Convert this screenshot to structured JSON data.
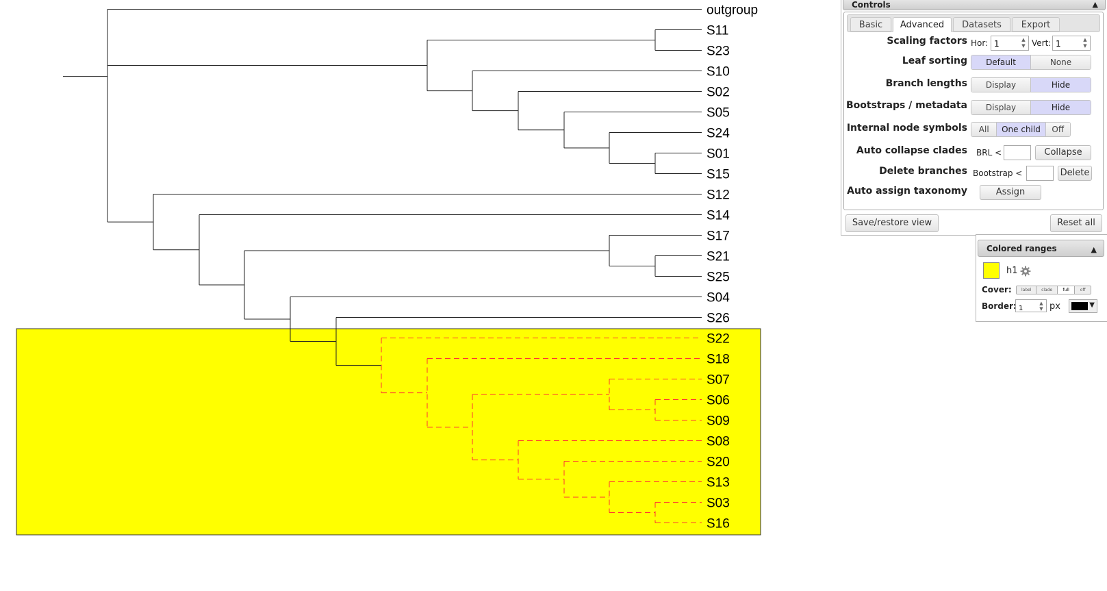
{
  "tree": {
    "leaves": [
      "outgroup",
      "S11",
      "S23",
      "S10",
      "S02",
      "S05",
      "S24",
      "S01",
      "S15",
      "S12",
      "S14",
      "S17",
      "S21",
      "S25",
      "S04",
      "S26",
      "S22",
      "S18",
      "S07",
      "S06",
      "S09",
      "S08",
      "S20",
      "S13",
      "S03",
      "S16"
    ],
    "highlight_color": "#ffff00",
    "highlight_branch_color": "#ff3333"
  },
  "controls": {
    "title": "Controls",
    "collapse_icon": "▲",
    "tabs": [
      {
        "label": "Basic",
        "active": false
      },
      {
        "label": "Advanced",
        "active": true
      },
      {
        "label": "Datasets",
        "active": false
      },
      {
        "label": "Export",
        "active": false
      }
    ],
    "scaling": {
      "label": "Scaling factors",
      "hor_label": "Hor:",
      "hor_value": "1",
      "vert_label": "Vert:",
      "vert_value": "1"
    },
    "leaf_sorting": {
      "label": "Leaf sorting",
      "options": [
        "Default",
        "None"
      ],
      "selected": "Default"
    },
    "branch_lengths": {
      "label": "Branch lengths",
      "options": [
        "Display",
        "Hide"
      ],
      "selected": "Hide"
    },
    "bootstraps": {
      "label": "Bootstraps / metadata",
      "options": [
        "Display",
        "Hide"
      ],
      "selected": "Hide"
    },
    "internal_nodes": {
      "label": "Internal node symbols",
      "options": [
        "All",
        "One child",
        "Off"
      ],
      "selected": "One child"
    },
    "auto_collapse": {
      "label": "Auto collapse clades",
      "prefix": "BRL <",
      "value": "",
      "button": "Collapse"
    },
    "delete_branches": {
      "label": "Delete branches",
      "prefix": "Bootstrap <",
      "value": "",
      "button": "Delete"
    },
    "auto_assign": {
      "label": "Auto assign taxonomy",
      "button": "Assign"
    },
    "save_restore": "Save/restore view",
    "reset_all": "Reset all"
  },
  "ranges": {
    "title": "Colored ranges",
    "collapse_icon": "▲",
    "entry": {
      "name": "h1",
      "color": "#ffff00"
    },
    "cover_label": "Cover:",
    "cover_options": [
      "label",
      "clade",
      "full",
      "off"
    ],
    "cover_selected": "full",
    "border_label": "Border:",
    "border_value": "1",
    "border_unit": "px",
    "border_color": "#000000"
  }
}
